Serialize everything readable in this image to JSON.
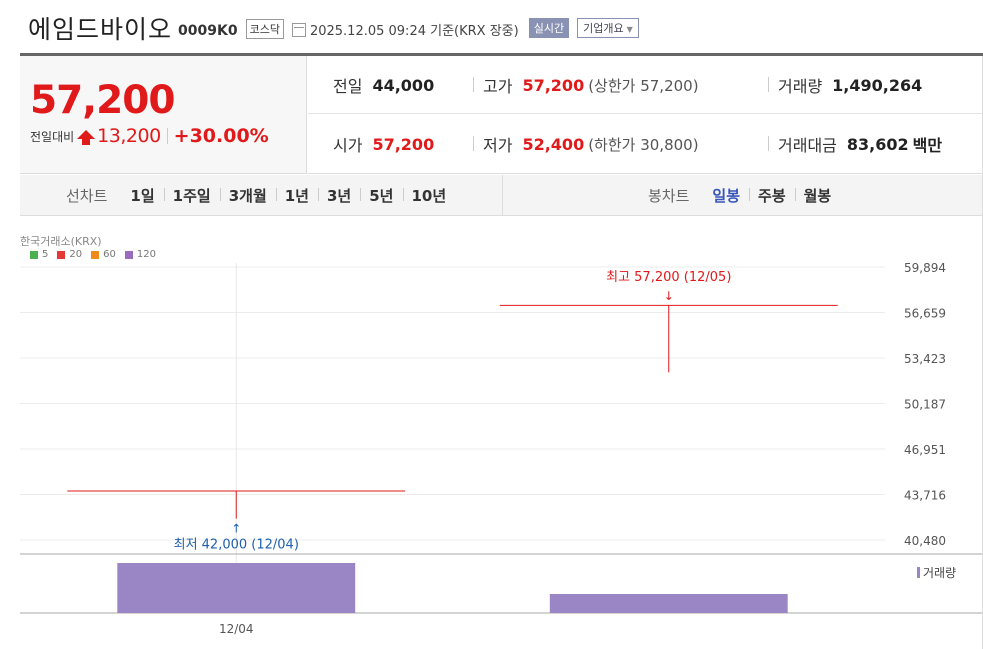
{
  "header": {
    "name": "에임드바이오",
    "code": "0009K0",
    "market": "코스닥",
    "datetime": "2025.12.05 09:24",
    "basis": "기준(KRX 장중)",
    "realtime": "실시간",
    "overview": "기업개요"
  },
  "quote": {
    "price": "57,200",
    "change_label": "전일대비",
    "change": "13,200",
    "change_pct": "+30.00%"
  },
  "info": {
    "prev_close": {
      "label": "전일",
      "value": "44,000"
    },
    "high": {
      "label": "고가",
      "value": "57,200",
      "note": "(상한가 57,200)"
    },
    "volume": {
      "label": "거래량",
      "value": "1,490,264"
    },
    "open": {
      "label": "시가",
      "value": "57,200"
    },
    "low": {
      "label": "저가",
      "value": "52,400",
      "note": "(하한가 30,800)"
    },
    "trade_value": {
      "label": "거래대금",
      "value": "83,602",
      "unit": "백만"
    }
  },
  "period_tabs": {
    "title": "선차트",
    "items": [
      "1일",
      "1주일",
      "3개월",
      "1년",
      "3년",
      "5년",
      "10년"
    ]
  },
  "candle_tabs": {
    "title": "봉차트",
    "items": [
      "일봉",
      "주봉",
      "월봉"
    ],
    "active": "일봉"
  },
  "colors": {
    "up": "#e0191a",
    "down": "#1f5fae",
    "volume": "#9a86c4",
    "accent": "#3a56b8"
  },
  "chart_data": {
    "type": "candlestick",
    "source_label": "한국거래소(KRX)",
    "legend": [
      {
        "name": "5",
        "color": "#4caf50"
      },
      {
        "name": "20",
        "color": "#e53935"
      },
      {
        "name": "60",
        "color": "#ef8a1c"
      },
      {
        "name": "120",
        "color": "#9a6ac0"
      }
    ],
    "y_ticks": [
      59894,
      56659,
      53423,
      50187,
      46951,
      43716,
      40480
    ],
    "y_tick_labels": [
      "59,894",
      "56,659",
      "53,423",
      "50,187",
      "46,951",
      "43,716",
      "40,480"
    ],
    "ylim": [
      40480,
      59894
    ],
    "x_tick_labels": [
      "12/04"
    ],
    "candles": [
      {
        "date": "12/04",
        "open": 44000,
        "high": 44000,
        "low": 42000,
        "close": 44000,
        "volume": 1.0
      },
      {
        "date": "12/05",
        "open": 57200,
        "high": 57200,
        "low": 52400,
        "close": 57200,
        "volume": 0.38
      }
    ],
    "annotations": {
      "max_label": "최고 57,200 (12/05)",
      "min_label": "최저 42,000 (12/04)"
    },
    "volume_label": "거래량"
  }
}
